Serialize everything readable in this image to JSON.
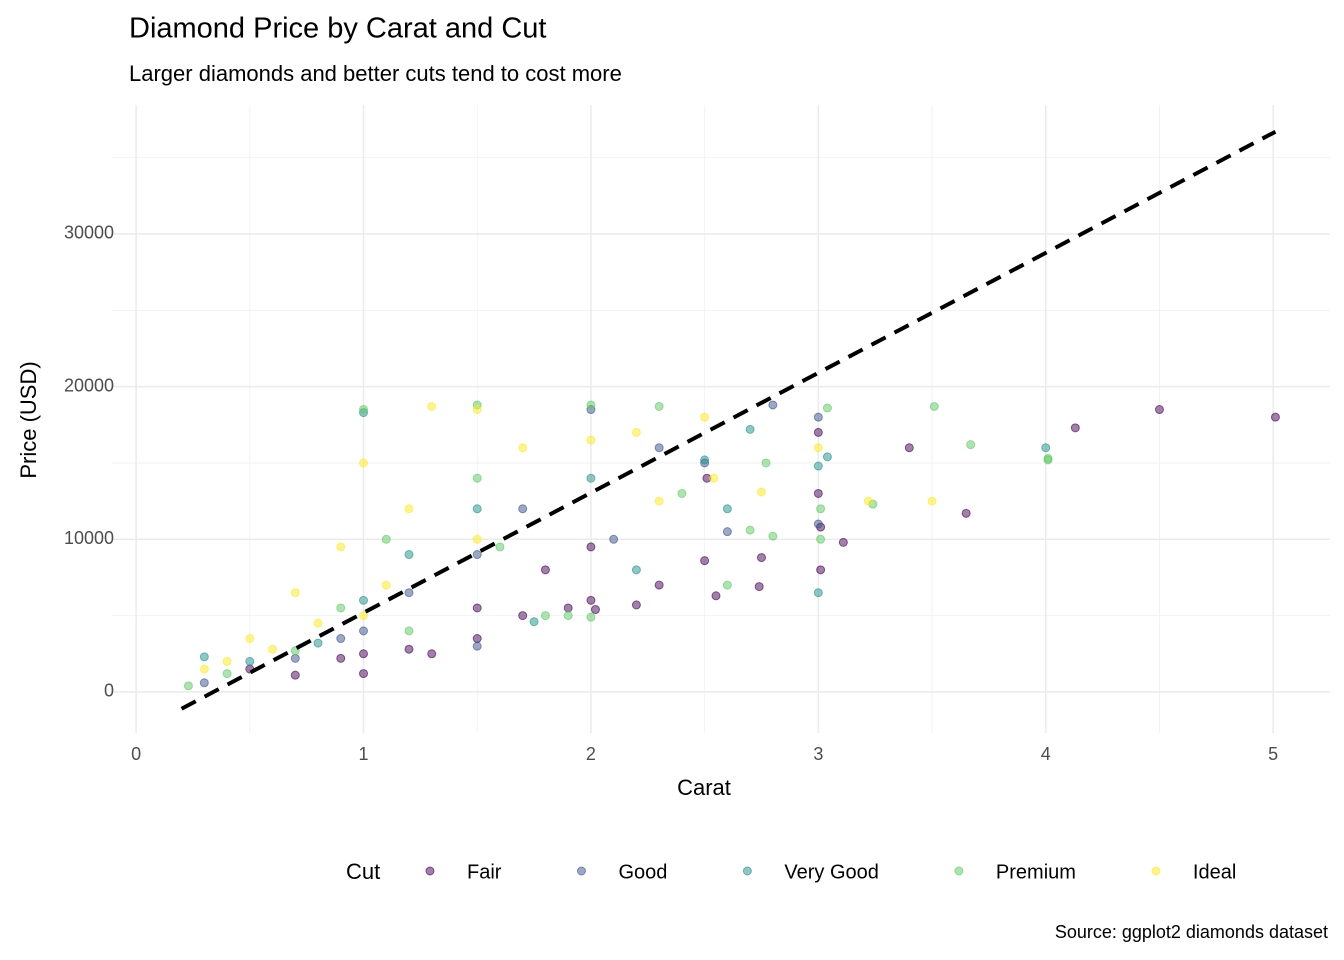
{
  "chart_data": {
    "type": "scatter",
    "title": "Diamond Price by Carat and Cut",
    "subtitle": "Larger diamonds and better cuts tend to cost more",
    "x_label": "Carat",
    "y_label": "Price (USD)",
    "caption": "Source: ggplot2 diamonds dataset",
    "legend_title": "Cut",
    "legend_position": "bottom",
    "grid": true,
    "xlim": [
      -0.106,
      5.25
    ],
    "ylim": [
      -2690,
      38450
    ],
    "xticks": [
      0,
      1,
      2,
      3,
      4,
      5
    ],
    "yticks": [
      0,
      10000,
      20000,
      30000
    ],
    "trend_line": {
      "x": [
        0.2,
        5.01
      ],
      "y": [
        -1100,
        36700
      ]
    },
    "series": [
      {
        "name": "Fair",
        "color": "#440154",
        "x": [
          5.01,
          4.5,
          4.13,
          3.65,
          3.4,
          3.11,
          3.01,
          3.01,
          3.0,
          3.0,
          2.74,
          2.75,
          2.55,
          2.5,
          2.3,
          2.2,
          2.02,
          2.0,
          2.0,
          1.9,
          1.7,
          1.5,
          1.5,
          1.2,
          1.0,
          1.0,
          0.9,
          0.7,
          0.5,
          1.3,
          2.51,
          1.8
        ],
        "values": [
          18000,
          18500,
          17300,
          11700,
          16000,
          9800,
          10800,
          8000,
          13000,
          17000,
          6900,
          8800,
          6300,
          8600,
          7000,
          5700,
          5400,
          6000,
          9500,
          5500,
          5000,
          3500,
          5500,
          2800,
          1200,
          2500,
          2200,
          1100,
          1500,
          2500,
          14000,
          8000
        ]
      },
      {
        "name": "Good",
        "color": "#3b528b",
        "x": [
          2.8,
          2.5,
          2.0,
          1.5,
          1.0,
          0.7,
          0.3,
          1.5,
          2.1,
          2.6,
          3.0,
          1.2,
          0.9,
          3.0,
          1.7,
          2.3
        ],
        "values": [
          18800,
          15000,
          18500,
          9000,
          4000,
          2200,
          600,
          3000,
          10000,
          10500,
          11000,
          6500,
          3500,
          18000,
          12000,
          16000
        ]
      },
      {
        "name": "Very Good",
        "color": "#21908c",
        "x": [
          3.04,
          3.0,
          3.0,
          4.0,
          2.7,
          1.0,
          2.5,
          1.5,
          1.0,
          0.5,
          0.3,
          2.0,
          1.75,
          1.2,
          0.8,
          2.6,
          2.2
        ],
        "values": [
          15400,
          14800,
          6500,
          16000,
          17200,
          18300,
          15200,
          12000,
          6000,
          2000,
          2300,
          14000,
          4600,
          9000,
          3200,
          12000,
          8000
        ]
      },
      {
        "name": "Premium",
        "color": "#5dc863",
        "x": [
          4.01,
          4.01,
          3.67,
          3.51,
          3.24,
          3.04,
          3.01,
          3.01,
          2.8,
          2.7,
          2.77,
          1.0,
          1.5,
          2.0,
          2.3,
          1.8,
          1.9,
          2.0,
          1.2,
          0.9,
          0.4,
          0.23,
          1.5,
          2.4,
          1.1,
          0.7,
          2.6,
          1.6
        ],
        "values": [
          15200,
          15300,
          16200,
          18700,
          12300,
          18600,
          10000,
          12000,
          10200,
          10600,
          15000,
          18500,
          18800,
          18800,
          18700,
          5000,
          5000,
          4900,
          4000,
          5500,
          1200,
          400,
          14000,
          13000,
          10000,
          2700,
          7000,
          9500
        ]
      },
      {
        "name": "Ideal",
        "color": "#fde725",
        "x": [
          3.5,
          3.22,
          2.75,
          3.0,
          1.3,
          1.5,
          2.5,
          1.0,
          1.2,
          0.9,
          0.7,
          0.5,
          0.3,
          0.6,
          1.1,
          1.7,
          2.0,
          2.2,
          0.4,
          1.0,
          1.5,
          0.8,
          2.3,
          2.54
        ],
        "values": [
          12500,
          12500,
          13100,
          16000,
          18700,
          18500,
          18000,
          15000,
          12000,
          9500,
          6500,
          3500,
          1500,
          2800,
          7000,
          16000,
          16500,
          17000,
          2000,
          5000,
          10000,
          4500,
          12500,
          14000
        ]
      }
    ]
  }
}
